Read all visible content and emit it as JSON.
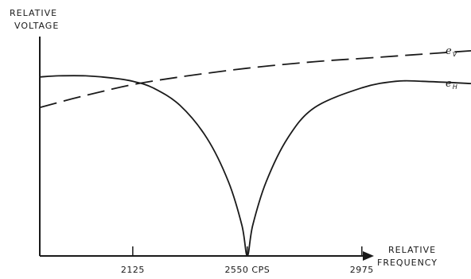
{
  "chart_data": {
    "type": "line",
    "ylabel_lines": [
      "RELATIVE",
      "VOLTAGE"
    ],
    "xlabel_lines": [
      "RELATIVE",
      "FREQUENCY"
    ],
    "x_ticks": [
      {
        "value": 2125,
        "label": "2125"
      },
      {
        "value": 2550,
        "label": "2550 CPS"
      },
      {
        "value": 2975,
        "label": "2975"
      }
    ],
    "xlim": [
      1780,
      3380
    ],
    "ylim": [
      0,
      1
    ],
    "series": [
      {
        "name": "e",
        "subscript": "V",
        "style": "dashed",
        "points": [
          [
            1780,
            0.68
          ],
          [
            1900,
            0.72
          ],
          [
            2000,
            0.75
          ],
          [
            2125,
            0.785
          ],
          [
            2300,
            0.82
          ],
          [
            2550,
            0.86
          ],
          [
            2800,
            0.89
          ],
          [
            2975,
            0.905
          ],
          [
            3150,
            0.92
          ],
          [
            3380,
            0.94
          ]
        ]
      },
      {
        "name": "e",
        "subscript": "H",
        "style": "solid",
        "points": [
          [
            1780,
            0.82
          ],
          [
            1850,
            0.825
          ],
          [
            1950,
            0.825
          ],
          [
            2050,
            0.815
          ],
          [
            2125,
            0.8
          ],
          [
            2200,
            0.77
          ],
          [
            2300,
            0.69
          ],
          [
            2400,
            0.54
          ],
          [
            2480,
            0.34
          ],
          [
            2530,
            0.14
          ],
          [
            2550,
            0.0
          ],
          [
            2570,
            0.14
          ],
          [
            2620,
            0.34
          ],
          [
            2700,
            0.54
          ],
          [
            2800,
            0.68
          ],
          [
            2975,
            0.77
          ],
          [
            3100,
            0.8
          ],
          [
            3200,
            0.8
          ],
          [
            3380,
            0.79
          ]
        ]
      }
    ]
  }
}
